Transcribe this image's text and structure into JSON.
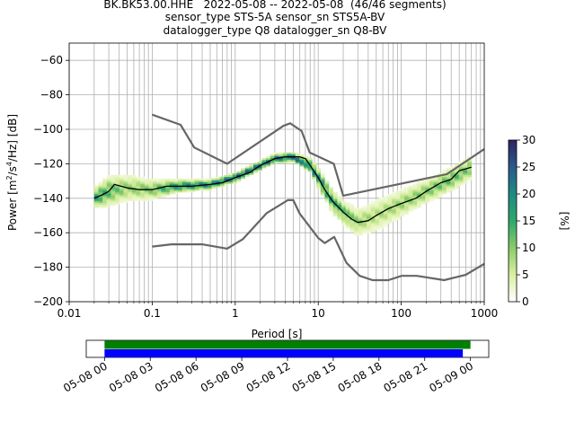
{
  "title_lines": [
    "BK.BK53.00.HHE   2022-05-08 -- 2022-05-08  (46/46 segments)",
    "sensor_type STS-5A sensor_sn STS5A-BV",
    "datalogger_type Q8 datalogger_sn Q8-BV"
  ],
  "chart_data": [
    {
      "type": "heatmap",
      "title": "BK.BK53.00.HHE   2022-05-08 -- 2022-05-08  (46/46 segments)",
      "xlabel": "Period [s]",
      "ylabel": "Power [m²/s⁴/Hz] [dB]",
      "x_scale": "log",
      "xlim": [
        0.01,
        1000
      ],
      "ylim": [
        -200,
        -50
      ],
      "x_ticks": [
        0.01,
        0.1,
        1,
        10,
        100,
        1000
      ],
      "x_tick_labels": [
        "0.01",
        "0.1",
        "1",
        "10",
        "100",
        "1000"
      ],
      "y_ticks": [
        -200,
        -180,
        -160,
        -140,
        -120,
        -100,
        -80,
        -60
      ],
      "y_tick_labels": [
        "−200",
        "−180",
        "−160",
        "−140",
        "−120",
        "−100",
        "−80",
        "−60"
      ],
      "grid": true,
      "colorbar": {
        "label": "[%]",
        "min": 0,
        "max": 30,
        "ticks": [
          0,
          5,
          10,
          15,
          20,
          25,
          30
        ],
        "tick_labels": [
          "0",
          "5",
          "10",
          "15",
          "20",
          "25",
          "30"
        ],
        "colors": [
          "#ffffff",
          "#d9efa0",
          "#8ccc6a",
          "#2ea86c",
          "#1f8a83",
          "#2a5a8c",
          "#2d2461"
        ]
      },
      "series": [
        {
          "role": "mean_psd",
          "color": "#000000",
          "points": [
            [
              0.02,
              -140
            ],
            [
              0.025,
              -138
            ],
            [
              0.03,
              -136
            ],
            [
              0.035,
              -132
            ],
            [
              0.05,
              -134
            ],
            [
              0.07,
              -135
            ],
            [
              0.1,
              -135
            ],
            [
              0.15,
              -133
            ],
            [
              0.2,
              -133
            ],
            [
              0.3,
              -133
            ],
            [
              0.5,
              -132
            ],
            [
              0.7,
              -131
            ],
            [
              1,
              -128
            ],
            [
              1.5,
              -125
            ],
            [
              2,
              -121
            ],
            [
              3,
              -117
            ],
            [
              4,
              -116
            ],
            [
              5,
              -116
            ],
            [
              6,
              -116
            ],
            [
              7,
              -117
            ],
            [
              8,
              -121
            ],
            [
              10,
              -128
            ],
            [
              12,
              -135
            ],
            [
              15,
              -142
            ],
            [
              20,
              -148
            ],
            [
              25,
              -152
            ],
            [
              30,
              -154
            ],
            [
              40,
              -153
            ],
            [
              50,
              -150
            ],
            [
              70,
              -146
            ],
            [
              100,
              -143
            ],
            [
              150,
              -140
            ],
            [
              200,
              -136
            ],
            [
              300,
              -131
            ],
            [
              400,
              -129
            ],
            [
              500,
              -124
            ],
            [
              700,
              -122
            ]
          ]
        },
        {
          "role": "new_high_noise_model",
          "color": "#666666",
          "points": [
            [
              0.1,
              -91.5
            ],
            [
              0.22,
              -97.4
            ],
            [
              0.32,
              -110.5
            ],
            [
              0.8,
              -120
            ],
            [
              3.8,
              -98
            ],
            [
              4.6,
              -96.5
            ],
            [
              6.3,
              -101
            ],
            [
              7.9,
              -113.5
            ],
            [
              15.4,
              -120
            ],
            [
              20,
              -138.5
            ],
            [
              354.8,
              -126
            ],
            [
              1000,
              -111.5
            ]
          ]
        },
        {
          "role": "new_low_noise_model",
          "color": "#666666",
          "points": [
            [
              0.1,
              -168
            ],
            [
              0.17,
              -166.7
            ],
            [
              0.4,
              -166.7
            ],
            [
              0.8,
              -169.2
            ],
            [
              1.24,
              -163.7
            ],
            [
              2.4,
              -148.6
            ],
            [
              4.3,
              -141.1
            ],
            [
              5,
              -141.1
            ],
            [
              6,
              -149
            ],
            [
              10,
              -163
            ],
            [
              12,
              -166
            ],
            [
              15.6,
              -162.4
            ],
            [
              21.9,
              -177.5
            ],
            [
              31.6,
              -185
            ],
            [
              45,
              -187.5
            ],
            [
              70,
              -187.5
            ],
            [
              101,
              -185
            ],
            [
              154,
              -185
            ],
            [
              328,
              -187.5
            ],
            [
              600,
              -184.4
            ],
            [
              1000,
              -178
            ]
          ]
        }
      ],
      "density_band": {
        "x": [
          0.02,
          0.03,
          0.05,
          0.1,
          0.2,
          0.5,
          1,
          2,
          3,
          5,
          8,
          10,
          15,
          20,
          30,
          50,
          100,
          200,
          400,
          700
        ],
        "center": [
          -140,
          -136,
          -134,
          -135,
          -133,
          -132,
          -128,
          -121,
          -117,
          -116,
          -121,
          -128,
          -142,
          -148,
          -154,
          -150,
          -143,
          -136,
          -129,
          -122
        ],
        "spread_db": [
          6,
          9,
          8,
          6,
          4,
          3,
          3,
          3,
          3,
          3,
          4,
          6,
          7,
          7,
          8,
          9,
          8,
          7,
          7,
          7
        ],
        "peak_percent": [
          20,
          15,
          10,
          12,
          22,
          25,
          28,
          28,
          25,
          28,
          26,
          22,
          18,
          14,
          10,
          8,
          10,
          12,
          14,
          12
        ]
      }
    },
    {
      "type": "bar",
      "role": "data_coverage",
      "x_tick_labels": [
        "05-08 00",
        "05-08 03",
        "05-08 06",
        "05-08 09",
        "05-08 12",
        "05-08 15",
        "05-08 18",
        "05-08 21",
        "05-09 00"
      ],
      "x_ticks_hours": [
        0,
        3,
        6,
        9,
        12,
        15,
        18,
        21,
        24
      ],
      "xlim_hours": [
        -1.2,
        25.2
      ],
      "bars": [
        {
          "name": "",
          "color": "#008000",
          "start_hour": 0,
          "end_hour": 24
        },
        {
          "name": "",
          "color": "#0000ff",
          "start_hour": 0,
          "end_hour": 23.5
        }
      ]
    }
  ]
}
